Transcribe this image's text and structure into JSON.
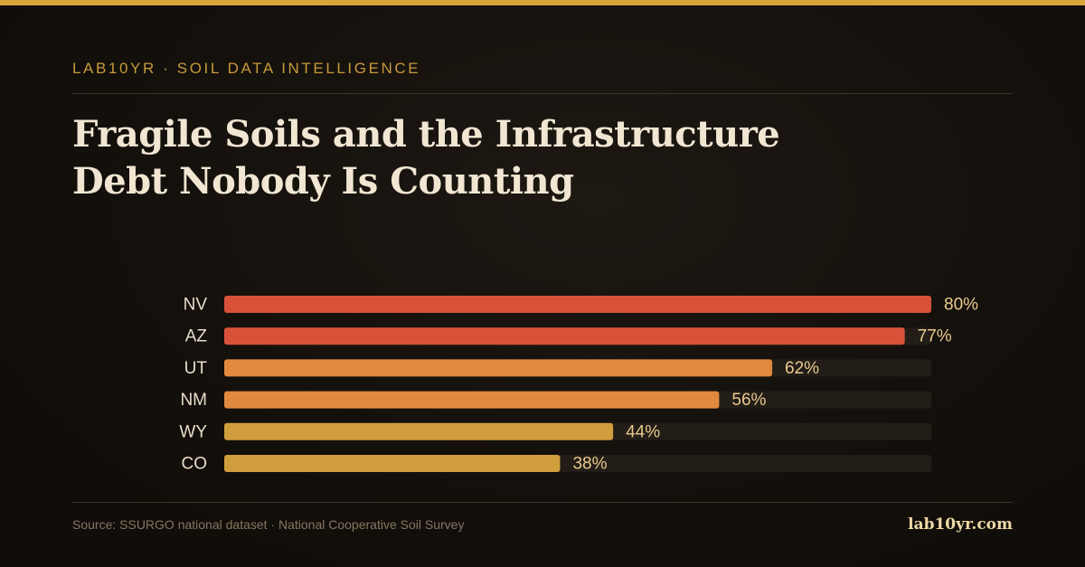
{
  "header": {
    "eyebrow": "LAB10YR · SOIL DATA INTELLIGENCE",
    "title": "Fragile Soils and the Infrastructure Debt Nobody Is Counting"
  },
  "footer": {
    "source": "Source: SSURGO national dataset · National Cooperative Soil Survey",
    "brand": "lab10yr.com"
  },
  "colors": {
    "accent": "#d9a53a",
    "track": "#221d17",
    "label": "#e8dcc8",
    "value": "#e9c98c"
  },
  "chart_data": {
    "type": "bar",
    "orientation": "horizontal",
    "categories": [
      "NV",
      "AZ",
      "UT",
      "NM",
      "WY",
      "CO"
    ],
    "values": [
      80,
      77,
      62,
      56,
      44,
      38
    ],
    "value_labels": [
      "80%",
      "77%",
      "62%",
      "56%",
      "44%",
      "38%"
    ],
    "bar_colors": [
      "#d8523a",
      "#d8523a",
      "#e1893e",
      "#e1893e",
      "#cf9d3c",
      "#cf9d3c"
    ],
    "xlim": [
      0,
      80
    ],
    "grid": false,
    "legend": "none"
  }
}
